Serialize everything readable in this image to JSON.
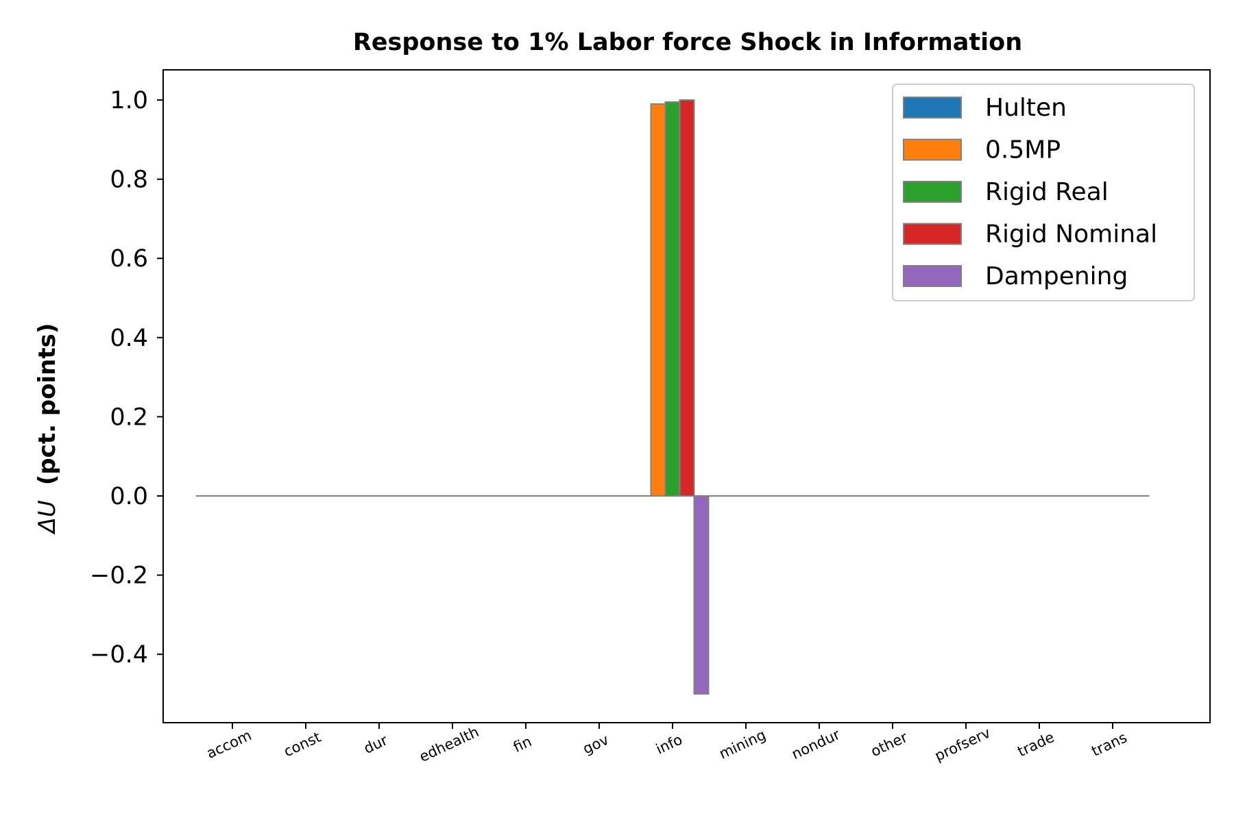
{
  "chart_data": {
    "type": "bar",
    "title": "Response to 1% Labor force Shock in Information",
    "xlabel": "",
    "ylabel_symbol": "ΔU",
    "ylabel_text": "(pct. points)",
    "categories": [
      "accom",
      "const",
      "dur",
      "edhealth",
      "fin",
      "gov",
      "info",
      "mining",
      "nondur",
      "other",
      "profserv",
      "trade",
      "trans"
    ],
    "series": [
      {
        "name": "Hulten",
        "color": "#1f77b4",
        "values": [
          0,
          0,
          0,
          0,
          0,
          0,
          0,
          0,
          0,
          0,
          0,
          0,
          0
        ]
      },
      {
        "name": "0.5MP",
        "color": "#ff7f0e",
        "values": [
          0,
          0,
          0,
          0,
          0,
          0,
          0.99,
          0,
          0,
          0,
          0,
          0,
          0
        ]
      },
      {
        "name": "Rigid Real",
        "color": "#2ca02c",
        "values": [
          0,
          0,
          0,
          0,
          0,
          0,
          0.995,
          0,
          0,
          0,
          0,
          0,
          0
        ]
      },
      {
        "name": "Rigid Nominal",
        "color": "#d62728",
        "values": [
          0,
          0,
          0,
          0,
          0,
          0,
          1.0,
          0,
          0,
          0,
          0,
          0,
          0
        ]
      },
      {
        "name": "Dampening",
        "color": "#9467bd",
        "values": [
          0,
          0,
          0,
          0,
          0,
          0,
          -0.5,
          0,
          0,
          0,
          0,
          0,
          0
        ]
      }
    ],
    "ylim": [
      -0.57,
      1.075
    ],
    "yticks": [
      -0.4,
      -0.2,
      0.0,
      0.2,
      0.4,
      0.6,
      0.8,
      1.0
    ],
    "ytick_labels": [
      "−0.4",
      "−0.2",
      "0.0",
      "0.2",
      "0.4",
      "0.6",
      "0.8",
      "1.0"
    ],
    "bar_edge_color": "#808080",
    "grid": false,
    "legend_position": "top-right"
  }
}
